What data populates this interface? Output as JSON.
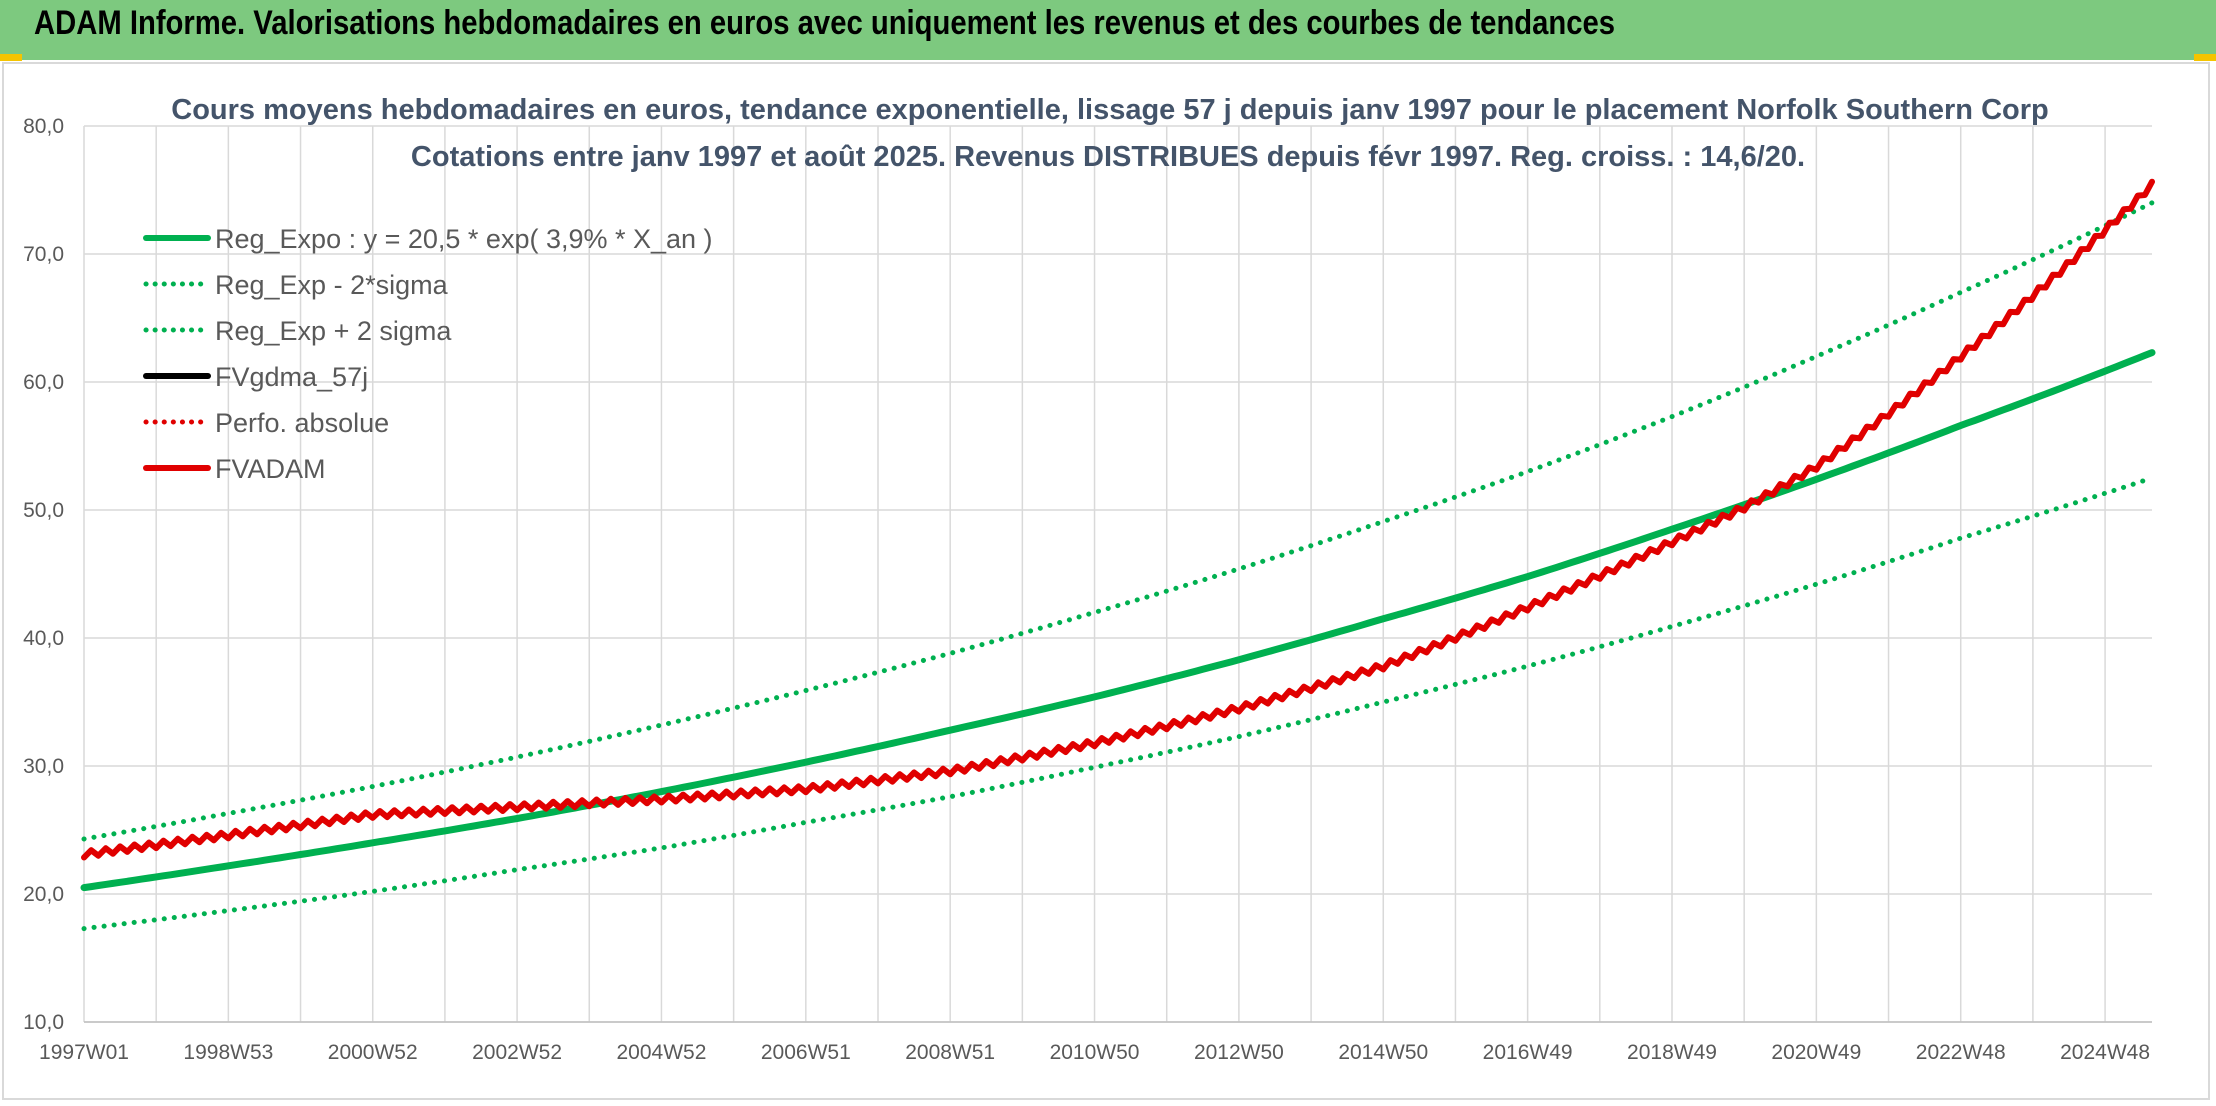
{
  "header": {
    "title": "ADAM Informe. Valorisations hebdomadaires en euros avec uniquement les revenus et des courbes de tendances"
  },
  "colors": {
    "header_bg": "#7dc97f",
    "accent": "#f5c400",
    "trend_green": "#00b050",
    "adam_red": "#e00000",
    "black": "#000000",
    "grid": "#d9d9d9"
  },
  "chart_data": {
    "type": "line",
    "title_line1": "Cours moyens hebdomadaires en euros, tendance exponentielle, lissage 57 j depuis janv 1997 pour le placement Norfolk Southern Corp",
    "title_line2": "Cotations entre janv 1997 et août 2025. Revenus DISTRIBUES depuis févr 1997. Reg. croiss. : 14,6/20.",
    "ylim": [
      10,
      80
    ],
    "y_ticks": [
      "10,0",
      "20,0",
      "30,0",
      "40,0",
      "50,0",
      "60,0",
      "70,0",
      "80,0"
    ],
    "x_range": [
      1997.0,
      2025.65
    ],
    "x_ticks": [
      {
        "label": "1997W01",
        "year": 1997.0
      },
      {
        "label": "1998W53",
        "year": 1999.0
      },
      {
        "label": "2000W52",
        "year": 2001.0
      },
      {
        "label": "2002W52",
        "year": 2003.0
      },
      {
        "label": "2004W52",
        "year": 2005.0
      },
      {
        "label": "2006W51",
        "year": 2007.0
      },
      {
        "label": "2008W51",
        "year": 2009.0
      },
      {
        "label": "2010W50",
        "year": 2011.0
      },
      {
        "label": "2012W50",
        "year": 2013.0
      },
      {
        "label": "2014W50",
        "year": 2015.0
      },
      {
        "label": "2016W49",
        "year": 2017.0
      },
      {
        "label": "2018W49",
        "year": 2019.0
      },
      {
        "label": "2020W49",
        "year": 2021.0
      },
      {
        "label": "2022W48",
        "year": 2023.0
      },
      {
        "label": "2024W48",
        "year": 2025.0
      }
    ],
    "grid": true,
    "legend_position": "top-left",
    "legend": [
      {
        "name": "Reg_Expo : y = 20,5 * exp( 3,9% *  X_an )",
        "color": "#00b050",
        "style": "solid"
      },
      {
        "name": "Reg_Exp - 2*sigma",
        "color": "#00b050",
        "style": "dotted"
      },
      {
        "name": "Reg_Exp + 2 sigma",
        "color": "#00b050",
        "style": "dotted"
      },
      {
        "name": "FVgdma_57j",
        "color": "#000000",
        "style": "solid"
      },
      {
        "name": "Perfo. absolue",
        "color": "#e00000",
        "style": "dotted"
      },
      {
        "name": "FVADAM",
        "color": "#e00000",
        "style": "solid"
      }
    ],
    "series": [
      {
        "name": "Reg_Expo : y = 20,5 * exp( 3,9% *  X_an )",
        "x": [
          1997,
          1999,
          2001,
          2003,
          2005,
          2007,
          2009,
          2011,
          2013,
          2015,
          2017,
          2019,
          2021,
          2023,
          2025.65
        ],
        "values": [
          20.5,
          22.2,
          24.0,
          25.9,
          28.0,
          30.3,
          32.8,
          35.4,
          38.3,
          41.5,
          44.8,
          48.5,
          52.4,
          56.6,
          62.3
        ]
      },
      {
        "name": "Reg_Exp - 2*sigma",
        "x": [
          1997,
          1999,
          2001,
          2003,
          2005,
          2007,
          2009,
          2011,
          2013,
          2015,
          2017,
          2019,
          2021,
          2023,
          2025.65
        ],
        "values": [
          17.3,
          18.7,
          20.2,
          21.9,
          23.6,
          25.6,
          27.6,
          29.9,
          32.3,
          35.0,
          37.8,
          40.9,
          44.2,
          47.8,
          52.5
        ]
      },
      {
        "name": "Reg_Exp + 2 sigma",
        "x": [
          1997,
          1999,
          2001,
          2003,
          2005,
          2007,
          2009,
          2011,
          2013,
          2015,
          2017,
          2019,
          2021,
          2023,
          2025.65
        ],
        "values": [
          24.3,
          26.3,
          28.4,
          30.7,
          33.2,
          35.9,
          38.8,
          42.0,
          45.4,
          49.1,
          53.0,
          57.3,
          62.0,
          67.0,
          74.0
        ]
      },
      {
        "name": "FVADAM",
        "x": [
          1997,
          1999,
          2001,
          2003,
          2004,
          2005,
          2007,
          2009,
          2011,
          2013,
          2015,
          2017,
          2019,
          2020,
          2021,
          2023,
          2025.65
        ],
        "values": [
          23.1,
          24.6,
          26.2,
          26.8,
          27.1,
          27.4,
          28.2,
          29.6,
          31.8,
          34.5,
          37.8,
          42.4,
          47.5,
          50.2,
          53.4,
          62.0,
          75.4
        ]
      }
    ]
  }
}
